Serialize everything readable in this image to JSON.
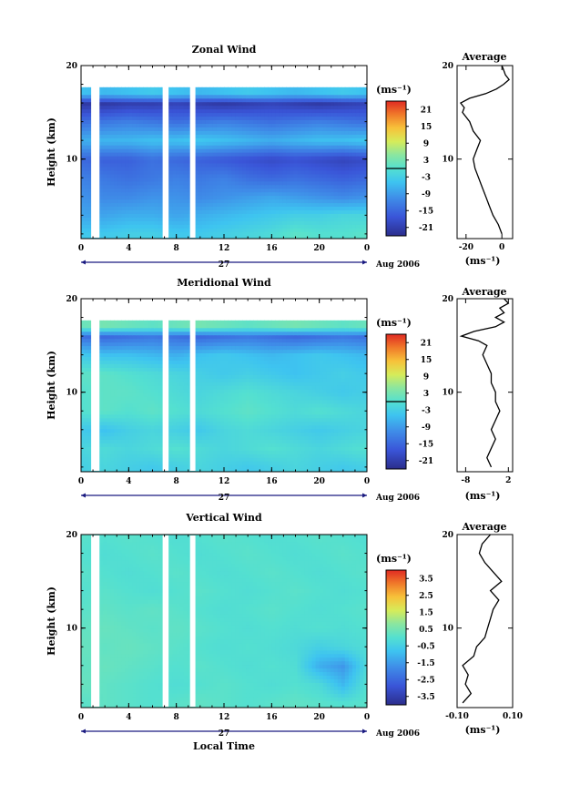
{
  "chart_data": [
    {
      "type": "heatmap",
      "title": "Zonal Wind",
      "ylabel": "Height (km)",
      "xlabel": "",
      "xlim": [
        0,
        24
      ],
      "ylim": [
        1.5,
        20
      ],
      "x_ticks": [
        "0",
        "4",
        "8",
        "12",
        "16",
        "20",
        "0"
      ],
      "x_tick_values": [
        0,
        4,
        8,
        12,
        16,
        20,
        24
      ],
      "y_ticks": [
        "10",
        "20"
      ],
      "y_tick_values": [
        10,
        20
      ],
      "date_label": "27",
      "month_label": "Aug 2006",
      "colorbar": {
        "unit_label": "(ms⁻¹)",
        "ticks": [
          "21",
          "15",
          "9",
          "3",
          "-3",
          "-9",
          "-15",
          "-21"
        ],
        "tick_values": [
          21,
          15,
          9,
          3,
          -3,
          -9,
          -15,
          -21
        ],
        "range": [
          -24,
          24
        ],
        "zero_line": 0
      },
      "field": {
        "x": [
          0,
          2,
          4,
          6,
          8,
          10,
          12,
          14,
          16,
          18,
          20,
          22,
          24
        ],
        "y": [
          2,
          4,
          6,
          8,
          10,
          12,
          14,
          16,
          17
        ],
        "values": [
          [
            -4,
            -4,
            -3,
            -3,
            -4,
            -4,
            -3,
            -2,
            -1,
            1,
            0,
            0,
            1
          ],
          [
            -8,
            -8,
            -7,
            -7,
            -8,
            -7,
            -6,
            -5,
            -4,
            -3,
            -3,
            -2,
            -2
          ],
          [
            -10,
            -11,
            -11,
            -10,
            -10,
            -11,
            -10,
            -9,
            -8,
            -9,
            -10,
            -11,
            -10
          ],
          [
            -12,
            -13,
            -14,
            -13,
            -12,
            -13,
            -12,
            -14,
            -15,
            -14,
            -15,
            -16,
            -15
          ],
          [
            -15,
            -16,
            -16,
            -14,
            -15,
            -16,
            -17,
            -18,
            -19,
            -18,
            -19,
            -20,
            -19
          ],
          [
            -7,
            -6,
            -6,
            -5,
            -5,
            -4,
            -5,
            -6,
            -7,
            -6,
            -5,
            -5,
            -4
          ],
          [
            -14,
            -13,
            -12,
            -13,
            -14,
            -13,
            -12,
            -13,
            -14,
            -13,
            -12,
            -13,
            -14
          ],
          [
            -22,
            -22,
            -21,
            -21,
            -20,
            -21,
            -22,
            -21,
            -20,
            -21,
            -22,
            -21,
            -20
          ],
          [
            -5,
            -6,
            -5,
            -4,
            -5,
            -6,
            -5,
            -4,
            -5,
            -6,
            -5,
            -4,
            -5
          ]
        ]
      },
      "average_profile": {
        "title": "Average",
        "xlabel": "(ms⁻¹)",
        "x_ticks": [
          "-20",
          "0"
        ],
        "x_tick_values": [
          -20,
          0
        ],
        "xlim": [
          -25,
          6
        ],
        "ylim": [
          1.5,
          20
        ],
        "y_ticks": [
          "10",
          "20"
        ],
        "y_tick_values": [
          10,
          20
        ],
        "height": [
          2,
          3,
          4,
          5,
          6,
          7,
          8,
          9,
          10,
          11,
          12,
          13,
          14,
          15,
          15.5,
          16,
          16.5,
          17,
          17.5,
          18,
          18.5,
          19,
          19.5,
          20
        ],
        "wind": [
          0,
          -2,
          -5,
          -7,
          -9,
          -11,
          -13,
          -15,
          -16,
          -14,
          -12,
          -16,
          -18,
          -22,
          -21,
          -23,
          -18,
          -9,
          -3,
          1,
          4,
          2,
          1,
          0
        ]
      }
    },
    {
      "type": "heatmap",
      "title": "Meridional Wind",
      "ylabel": "Height (km)",
      "xlabel": "",
      "xlim": [
        0,
        24
      ],
      "ylim": [
        1.5,
        20
      ],
      "x_ticks": [
        "0",
        "4",
        "8",
        "12",
        "16",
        "20",
        "0"
      ],
      "x_tick_values": [
        0,
        4,
        8,
        12,
        16,
        20,
        24
      ],
      "y_ticks": [
        "10",
        "20"
      ],
      "y_tick_values": [
        10,
        20
      ],
      "date_label": "27",
      "month_label": "Aug 2006",
      "colorbar": {
        "unit_label": "(ms⁻¹)",
        "ticks": [
          "21",
          "15",
          "9",
          "3",
          "-3",
          "-9",
          "-15",
          "-21"
        ],
        "tick_values": [
          21,
          15,
          9,
          3,
          -3,
          -9,
          -15,
          -21
        ],
        "range": [
          -24,
          24
        ],
        "zero_line": 0
      },
      "field": {
        "x": [
          0,
          2,
          4,
          6,
          8,
          10,
          12,
          14,
          16,
          18,
          20,
          22,
          24
        ],
        "y": [
          2,
          4,
          6,
          8,
          10,
          12,
          14,
          16,
          17
        ],
        "values": [
          [
            -3,
            -2,
            -3,
            -4,
            -3,
            -2,
            -3,
            -4,
            -3,
            -2,
            -3,
            -4,
            -3
          ],
          [
            -2,
            -1,
            -2,
            -1,
            0,
            -1,
            -2,
            -1,
            0,
            -1,
            -2,
            -1,
            0
          ],
          [
            -4,
            -5,
            -3,
            -2,
            -3,
            -4,
            -2,
            -1,
            -2,
            -3,
            -4,
            -3,
            -2
          ],
          [
            0,
            1,
            0,
            1,
            0,
            -1,
            0,
            1,
            0,
            -1,
            0,
            -1,
            -2
          ],
          [
            0,
            1,
            1,
            0,
            -1,
            -2,
            -1,
            0,
            -1,
            -2,
            -3,
            -4,
            -3
          ],
          [
            1,
            1,
            0,
            -1,
            -2,
            -3,
            -4,
            -3,
            -4,
            -5,
            -4,
            -3,
            -4
          ],
          [
            -4,
            -5,
            -5,
            -6,
            -7,
            -5,
            -4,
            -5,
            -6,
            -5,
            -4,
            -5,
            -6
          ],
          [
            -14,
            -15,
            -14,
            -13,
            -14,
            -15,
            -14,
            -13,
            -14,
            -15,
            -14,
            -13,
            -14
          ],
          [
            2,
            3,
            2,
            1,
            2,
            3,
            2,
            1,
            2,
            3,
            2,
            1,
            2
          ]
        ]
      },
      "average_profile": {
        "title": "Average",
        "xlabel": "(ms⁻¹)",
        "x_ticks": [
          "-8",
          "2"
        ],
        "x_tick_values": [
          -8,
          2
        ],
        "xlim": [
          -10,
          3
        ],
        "ylim": [
          1.5,
          20
        ],
        "y_ticks": [
          "10",
          "20"
        ],
        "y_tick_values": [
          10,
          20
        ],
        "height": [
          2,
          3,
          4,
          5,
          6,
          7,
          8,
          9,
          10,
          11,
          12,
          13,
          14,
          15,
          15.5,
          16,
          16.5,
          17,
          17.5,
          18,
          18.5,
          19,
          19.5,
          20
        ],
        "wind": [
          -2,
          -3,
          -2,
          -1,
          -2,
          -1,
          0,
          -1,
          -1,
          -2,
          -2,
          -3,
          -4,
          -3,
          -5,
          -9,
          -6,
          -1,
          1,
          -1,
          1,
          0,
          2,
          1
        ]
      }
    },
    {
      "type": "heatmap",
      "title": "Vertical Wind",
      "ylabel": "Height (km)",
      "xlabel": "Local Time",
      "xlim": [
        0,
        24
      ],
      "ylim": [
        1.5,
        20
      ],
      "x_ticks": [
        "0",
        "4",
        "8",
        "12",
        "16",
        "20",
        "0"
      ],
      "x_tick_values": [
        0,
        4,
        8,
        12,
        16,
        20,
        24
      ],
      "y_ticks": [
        "10",
        "20"
      ],
      "y_tick_values": [
        10,
        20
      ],
      "date_label": "27",
      "month_label": "Aug 2006",
      "colorbar": {
        "unit_label": "(ms⁻¹)",
        "ticks": [
          "3.5",
          "2.5",
          "1.5",
          "0.5",
          "-0.5",
          "-1.5",
          "-2.5",
          "-3.5"
        ],
        "tick_values": [
          3.5,
          2.5,
          1.5,
          0.5,
          -0.5,
          -1.5,
          -2.5,
          -3.5
        ],
        "range": [
          -4,
          4
        ],
        "zero_line": null
      },
      "field": {
        "x": [
          0,
          2,
          4,
          6,
          8,
          10,
          12,
          14,
          16,
          18,
          20,
          22,
          24
        ],
        "y": [
          2,
          4,
          6,
          8,
          10,
          12,
          14,
          16,
          18,
          20
        ],
        "values": [
          [
            0.1,
            0.2,
            0.1,
            0.0,
            0.1,
            0.2,
            0.1,
            0.0,
            0.1,
            0.2,
            0.1,
            0.0,
            0.1
          ],
          [
            0.3,
            0.2,
            0.1,
            0.0,
            -0.1,
            0.0,
            0.1,
            0.0,
            -0.1,
            0.0,
            -0.2,
            -1.0,
            0.0
          ],
          [
            0.2,
            0.3,
            0.2,
            0.1,
            0.0,
            0.1,
            0.0,
            -0.1,
            0.0,
            -0.1,
            -1.2,
            -1.6,
            -0.2
          ],
          [
            0.3,
            0.2,
            0.3,
            0.2,
            0.1,
            0.0,
            -0.1,
            0.0,
            -0.1,
            -0.2,
            -0.5,
            -0.3,
            -0.1
          ],
          [
            0.2,
            0.3,
            0.2,
            0.1,
            0.2,
            0.1,
            0.0,
            -0.1,
            0.0,
            -0.1,
            0.0,
            -0.1,
            0.0
          ],
          [
            0.1,
            0.2,
            0.1,
            0.2,
            0.1,
            0.0,
            -0.1,
            0.0,
            0.1,
            0.0,
            -0.1,
            0.0,
            0.1
          ],
          [
            0.0,
            0.1,
            0.0,
            -0.1,
            0.0,
            0.1,
            0.0,
            -0.1,
            0.0,
            0.1,
            0.0,
            -0.1,
            0.0
          ],
          [
            0.1,
            0.0,
            -0.1,
            0.0,
            0.1,
            0.0,
            -0.1,
            0.0,
            0.1,
            0.0,
            -0.1,
            0.0,
            0.1
          ],
          [
            0.0,
            -0.1,
            0.0,
            0.1,
            0.0,
            -0.1,
            0.0,
            0.1,
            0.0,
            -0.1,
            0.0,
            0.1,
            0.0
          ],
          [
            0.1,
            0.0,
            0.1,
            0.0,
            -0.1,
            0.0,
            0.1,
            0.0,
            -0.1,
            0.0,
            0.1,
            0.0,
            -0.1
          ]
        ]
      },
      "average_profile": {
        "title": "Average",
        "xlabel": "(ms⁻¹)",
        "x_ticks": [
          "-0.10",
          "0.10"
        ],
        "x_tick_values": [
          -0.1,
          0.1
        ],
        "xlim": [
          -0.1,
          0.1
        ],
        "ylim": [
          1.5,
          20
        ],
        "y_ticks": [
          "10",
          "20"
        ],
        "y_tick_values": [
          10,
          20
        ],
        "height": [
          2,
          3,
          4,
          5,
          6,
          7,
          8,
          9,
          10,
          11,
          12,
          13,
          14,
          15,
          16,
          17,
          18,
          19,
          20
        ],
        "wind": [
          -0.08,
          -0.05,
          -0.07,
          -0.06,
          -0.08,
          -0.04,
          -0.03,
          0.0,
          0.01,
          0.02,
          0.03,
          0.05,
          0.02,
          0.06,
          0.03,
          0.0,
          -0.02,
          -0.01,
          0.02
        ]
      }
    }
  ]
}
